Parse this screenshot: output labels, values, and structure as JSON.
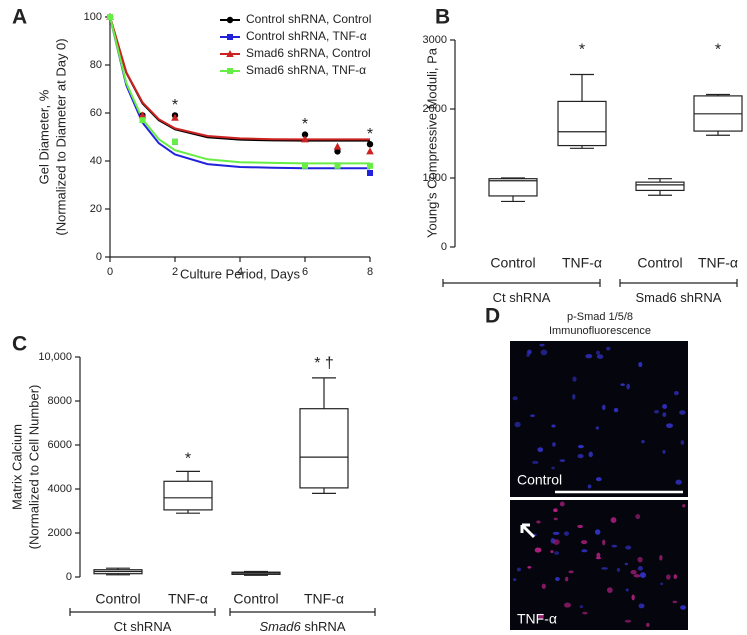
{
  "chart_data": [
    {
      "type": "line",
      "panel_label": "A",
      "x": [
        0,
        1,
        2,
        6,
        7,
        8
      ],
      "fit_x": [
        0,
        0.5,
        1,
        1.5,
        2,
        3,
        4,
        5,
        6,
        7,
        8
      ],
      "series": [
        {
          "name": "Control shRNA, Control",
          "color": "#000000",
          "marker": "circle",
          "values": [
            100,
            59,
            59,
            51,
            44,
            47
          ],
          "fit_values": [
            100,
            76.8,
            64.0,
            57.0,
            53.2,
            49.9,
            48.9,
            48.6,
            48.5,
            48.5,
            48.5
          ]
        },
        {
          "name": "Control shRNA, TNF-α",
          "color": "#2222dd",
          "marker": "square",
          "values": [
            100,
            58,
            48,
            38,
            38,
            35
          ],
          "fit_values": [
            100,
            71.6,
            56.0,
            47.4,
            42.7,
            38.7,
            37.5,
            37.2,
            37.0,
            37.0,
            37.0
          ]
        },
        {
          "name": "Smad6 shRNA, Control",
          "color": "#cc2222",
          "marker": "triangle",
          "values": [
            100,
            59,
            58,
            49,
            46,
            44
          ],
          "fit_values": [
            100,
            77.0,
            64.4,
            57.4,
            53.6,
            50.4,
            49.4,
            49.1,
            49.0,
            49.0,
            49.0
          ]
        },
        {
          "name": "Smad6 shRNA, TNF-α",
          "color": "#66ee44",
          "marker": "square",
          "values": [
            100,
            57,
            48,
            38,
            38,
            38
          ],
          "fit_values": [
            100,
            72.5,
            57.4,
            49.1,
            44.5,
            40.7,
            39.5,
            39.2,
            39.0,
            39.0,
            39.0
          ]
        }
      ],
      "xlim": [
        0,
        8
      ],
      "xticks": [
        0,
        2,
        4,
        6,
        8
      ],
      "ylim": [
        0,
        100
      ],
      "yticks": [
        0,
        20,
        40,
        60,
        80,
        100
      ],
      "xlabel": "Culture Period, Days",
      "ylabel": [
        "Gel Diameter, %",
        "(Normalized to Diameter at  Day 0)"
      ],
      "annotations": [
        {
          "text": "*",
          "x": 2,
          "y": 63
        },
        {
          "text": "*",
          "x": 6,
          "y": 55
        },
        {
          "text": "*",
          "x": 8,
          "y": 51
        }
      ]
    },
    {
      "type": "box",
      "panel_label": "B",
      "categories": [
        "Control",
        "TNF-α",
        "Control",
        "TNF-α"
      ],
      "boxes": [
        {
          "min": 660,
          "q1": 740,
          "median": 960,
          "q3": 990,
          "max": 1000
        },
        {
          "min": 1430,
          "q1": 1470,
          "median": 1670,
          "q3": 2110,
          "max": 2500
        },
        {
          "min": 750,
          "q1": 820,
          "median": 900,
          "q3": 940,
          "max": 990
        },
        {
          "min": 1620,
          "q1": 1680,
          "median": 1930,
          "q3": 2190,
          "max": 2210
        }
      ],
      "groups": [
        {
          "label": [
            "Ct shRNA"
          ],
          "italic": [
            false
          ]
        },
        {
          "label": [
            "Smad6 shRNA"
          ],
          "italic": [
            false
          ]
        }
      ],
      "ylim": [
        0,
        3000
      ],
      "yticks": [
        0,
        1000,
        2000,
        3000
      ],
      "ylabel": [
        "Young’s Compressive Moduli, Pa"
      ],
      "annotations": [
        {
          "text": "*",
          "category": 1,
          "y": 2850
        },
        {
          "text": "*",
          "category": 3,
          "y": 2850
        }
      ]
    },
    {
      "type": "box",
      "panel_label": "C",
      "categories": [
        "Control",
        "TNF-α",
        "Control",
        "TNF-α"
      ],
      "boxes": [
        {
          "min": 100,
          "q1": 150,
          "median": 250,
          "q3": 330,
          "max": 400
        },
        {
          "min": 2900,
          "q1": 3050,
          "median": 3600,
          "q3": 4350,
          "max": 4800
        },
        {
          "min": 80,
          "q1": 120,
          "median": 180,
          "q3": 220,
          "max": 250
        },
        {
          "min": 3800,
          "q1": 4050,
          "median": 5450,
          "q3": 7650,
          "max": 9050
        }
      ],
      "groups": [
        {
          "label": [
            "Ct shRNA"
          ],
          "italic": [
            false
          ]
        },
        {
          "label": [
            "Smad6",
            " shRNA"
          ],
          "italic": [
            true,
            false
          ]
        }
      ],
      "ylim": [
        0,
        10000
      ],
      "yticks": [
        0,
        2000,
        4000,
        6000,
        8000,
        {
          "value": 10000,
          "label": "10,000"
        }
      ],
      "ylabel": [
        "Matrix Calcium",
        "(Normalized to Cell Number)"
      ],
      "annotations": [
        {
          "text": "*",
          "category": 1,
          "y": 5350
        },
        {
          "text": "* †",
          "category": 3,
          "y": 9700
        }
      ]
    }
  ],
  "image_panel": {
    "panel_label": "D",
    "title": [
      "p-Smad 1/5/8",
      "Immunofluorescence"
    ],
    "images": [
      "Control",
      "TNF-α"
    ]
  }
}
